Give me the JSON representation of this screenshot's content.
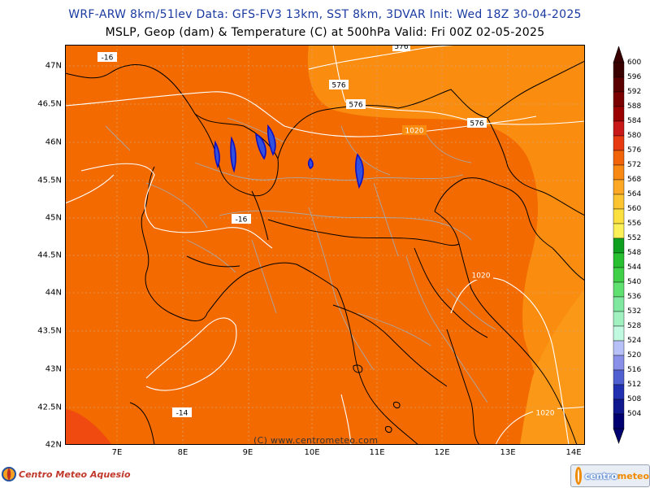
{
  "header": {
    "line1": "WRF-ARW 8km/51lev  Data: GFS-FV3 13km, SST 8km, 3DVAR  Init: Wed 18Z 30-04-2025",
    "line2": "MSLP, Geop (dam) & Temperature (C) at 500hPa  Valid: Fri 00Z 02-05-2025"
  },
  "map": {
    "lat_labels": [
      "47N",
      "46.5N",
      "46N",
      "45.5N",
      "45N",
      "44.5N",
      "44N",
      "43.5N",
      "43N",
      "42.5N",
      "42N"
    ],
    "lon_labels": [
      "7E",
      "8E",
      "9E",
      "10E",
      "11E",
      "12E",
      "13E",
      "14E"
    ],
    "contour_labels": {
      "geop_576_a": "576",
      "geop_576_b": "576",
      "geop_576_c": "576",
      "geop_576_d": "576",
      "mslp_1020_a": "1020",
      "mslp_1020_b": "1020",
      "mslp_1020_c": "1020",
      "temp_m16_a": "-16",
      "temp_m16_b": "-16",
      "temp_m14": "-14"
    },
    "copyright": "(C) www.centrometeo.com",
    "colors": {
      "c576": "#f26a00",
      "c572": "#fa8c10",
      "c580": "#f04a10",
      "c584": "#e8301a",
      "land_border": "#000000",
      "admin_border": "#a0a0a0",
      "contour": "#ffffff",
      "lake": "#1010c0",
      "grid": "#c0c0c0"
    }
  },
  "colorbar": {
    "ticks": [
      "600",
      "596",
      "592",
      "588",
      "584",
      "580",
      "576",
      "572",
      "568",
      "564",
      "560",
      "556",
      "552",
      "548",
      "544",
      "540",
      "536",
      "532",
      "528",
      "524",
      "520",
      "516",
      "512",
      "508",
      "504"
    ],
    "colors": [
      "#3a0000",
      "#5a0000",
      "#7a0000",
      "#9a0000",
      "#c81818",
      "#e83a10",
      "#f2640a",
      "#f88a14",
      "#fca824",
      "#fcc430",
      "#fce040",
      "#fcf058",
      "#10a020",
      "#28c030",
      "#40d048",
      "#60e070",
      "#80e8a0",
      "#a0f0c0",
      "#c0f8e0",
      "#b8c0f8",
      "#8890e8",
      "#5060d0",
      "#2030b0",
      "#101890",
      "#000070"
    ]
  },
  "logos": {
    "left": "Centro Meteo Aquesio",
    "right_a": "centro",
    "right_b": "meteo"
  }
}
